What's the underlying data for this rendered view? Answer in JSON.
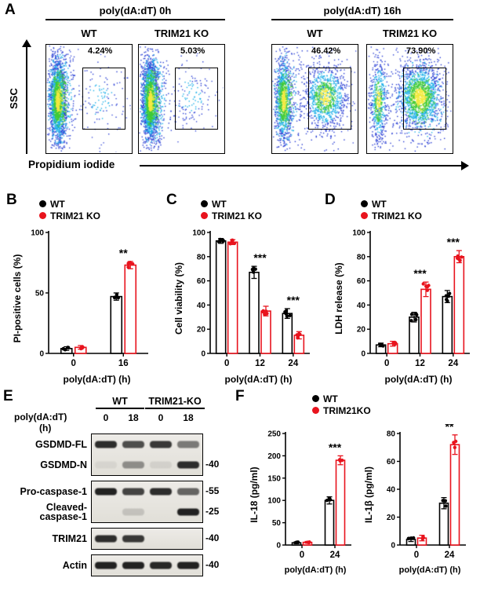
{
  "figure": {
    "labels": {
      "A": "A",
      "B": "B",
      "C": "C",
      "D": "D",
      "E": "E",
      "F": "F"
    },
    "panelA": {
      "group_titles": [
        "poly(dA:dT) 0h",
        "poly(dA:dT) 16h"
      ],
      "plots": [
        {
          "genotype": "WT",
          "gate_pct": "4.24%"
        },
        {
          "genotype": "TRIM21 KO",
          "gate_pct": "5.03%"
        },
        {
          "genotype": "WT",
          "gate_pct": "46.42%"
        },
        {
          "genotype": "TRIM21 KO",
          "gate_pct": "73.90%"
        }
      ],
      "ylabel": "SSC",
      "xlabel": "Propidium iodide"
    },
    "blot": {
      "group_labels": [
        "WT",
        "TRIM21-KO"
      ],
      "treatment_label": "poly(dA:dT)",
      "treatment_unit": "(h)",
      "lanes": [
        "0",
        "18",
        "0",
        "18"
      ],
      "boxes": [
        {
          "rows": [
            {
              "label": "GSDMD-FL",
              "mw": "",
              "bands": [
                0.85,
                0.7,
                0.8,
                0.5
              ]
            },
            {
              "label": "GSDMD-N",
              "mw": "-40",
              "bands": [
                0.06,
                0.4,
                0.08,
                0.85
              ]
            }
          ]
        },
        {
          "rows": [
            {
              "label": "Pro-caspase-1",
              "mw": "-55",
              "bands": [
                0.9,
                0.75,
                0.85,
                0.6
              ]
            },
            {
              "label": "Cleaved-caspase-1",
              "mw": "-25",
              "bands": [
                0,
                0.15,
                0,
                0.9
              ]
            }
          ]
        },
        {
          "rows": [
            {
              "label": "TRIM21",
              "mw": "-40",
              "bands": [
                0.85,
                0.8,
                0,
                0
              ]
            }
          ]
        },
        {
          "rows": [
            {
              "label": "Actin",
              "mw": "-40",
              "bands": [
                0.9,
                0.9,
                0.88,
                0.9
              ]
            }
          ]
        }
      ]
    }
  },
  "chart_data": [
    {
      "id": "B",
      "type": "bar",
      "ylabel": "PI-positive cells (%)",
      "xlabel": "poly(dA:dT) (h)",
      "categories": [
        "0",
        "16"
      ],
      "ylim": [
        0,
        100
      ],
      "yticks": [
        0,
        50,
        100
      ],
      "series": [
        {
          "name": "WT",
          "color": "#000000",
          "values": [
            4,
            47
          ],
          "errors": [
            1.5,
            3
          ]
        },
        {
          "name": "TRIM21 KO",
          "color": "#e8131d",
          "values": [
            5,
            73
          ],
          "errors": [
            1.5,
            3
          ]
        }
      ],
      "significance": [
        {
          "category": "16",
          "label": "**"
        }
      ],
      "replicates": 4
    },
    {
      "id": "C",
      "type": "bar",
      "ylabel": "Cell viability (%)",
      "xlabel": "poly(dA:dT) (h)",
      "categories": [
        "0",
        "12",
        "24"
      ],
      "ylim": [
        0,
        100
      ],
      "yticks": [
        0,
        20,
        40,
        60,
        80,
        100
      ],
      "series": [
        {
          "name": "WT",
          "color": "#000000",
          "values": [
            93,
            67,
            33
          ],
          "errors": [
            2,
            5,
            4
          ]
        },
        {
          "name": "TRIM21 KO",
          "color": "#e8131d",
          "values": [
            92,
            35,
            15
          ],
          "errors": [
            2,
            4,
            3
          ]
        }
      ],
      "significance": [
        {
          "category": "12",
          "label": "***"
        },
        {
          "category": "24",
          "label": "***"
        }
      ],
      "replicates": 5
    },
    {
      "id": "D",
      "type": "bar",
      "ylabel": "LDH release (%)",
      "xlabel": "poly(dA:dT) (h)",
      "categories": [
        "0",
        "12",
        "24"
      ],
      "ylim": [
        0,
        100
      ],
      "yticks": [
        0,
        20,
        40,
        60,
        80,
        100
      ],
      "series": [
        {
          "name": "WT",
          "color": "#000000",
          "values": [
            7,
            30,
            47
          ],
          "errors": [
            1.5,
            4,
            5
          ]
        },
        {
          "name": "TRIM21 KO",
          "color": "#e8131d",
          "values": [
            8,
            53,
            80
          ],
          "errors": [
            2,
            6,
            5
          ]
        }
      ],
      "significance": [
        {
          "category": "12",
          "label": "***"
        },
        {
          "category": "24",
          "label": "***"
        }
      ],
      "replicates": 5
    },
    {
      "id": "F-IL18",
      "type": "bar",
      "ylabel": "IL-18 (pg/ml)",
      "xlabel": "poly(dA:dT) (h)",
      "categories": [
        "0",
        "24"
      ],
      "ylim": [
        0,
        250
      ],
      "yticks": [
        0,
        50,
        100,
        150,
        200,
        250
      ],
      "series": [
        {
          "name": "WT",
          "color": "#000000",
          "values": [
            5,
            100
          ],
          "errors": [
            2,
            8
          ]
        },
        {
          "name": "TRIM21KO",
          "color": "#e8131d",
          "values": [
            6,
            190
          ],
          "errors": [
            2,
            10
          ]
        }
      ],
      "significance": [
        {
          "category": "24",
          "label": "***"
        }
      ],
      "replicates": 3
    },
    {
      "id": "F-IL1b",
      "type": "bar",
      "ylabel": "IL-1β (pg/ml)",
      "xlabel": "poly(dA:dT) (h)",
      "categories": [
        "0",
        "24"
      ],
      "ylim": [
        0,
        80
      ],
      "yticks": [
        0,
        20,
        40,
        60,
        80
      ],
      "series": [
        {
          "name": "WT",
          "color": "#000000",
          "values": [
            4,
            30
          ],
          "errors": [
            1.5,
            4
          ]
        },
        {
          "name": "TRIM21KO",
          "color": "#e8131d",
          "values": [
            5,
            72
          ],
          "errors": [
            2,
            7
          ]
        }
      ],
      "significance": [
        {
          "category": "24",
          "label": "**"
        }
      ],
      "replicates": 3
    }
  ],
  "colors": {
    "wt": "#000000",
    "trim21_ko": "#e8131d",
    "axis": "#000000"
  }
}
